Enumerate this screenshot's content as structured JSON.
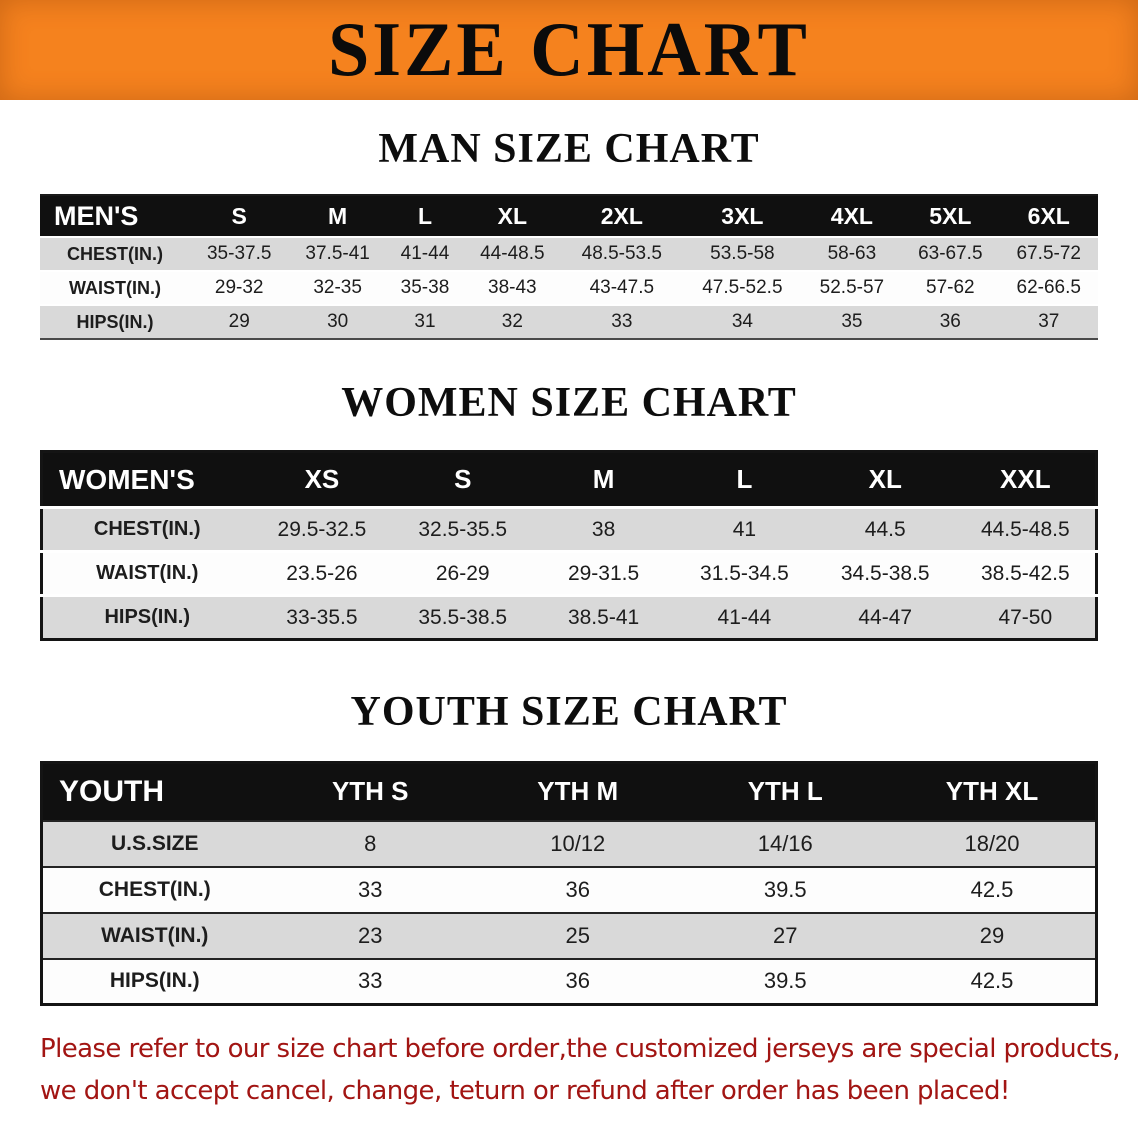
{
  "banner": {
    "title": "SIZE CHART"
  },
  "chart_data": [
    {
      "type": "table",
      "title": "MAN SIZE CHART",
      "columns": [
        "MEN'S",
        "S",
        "M",
        "L",
        "XL",
        "2XL",
        "3XL",
        "4XL",
        "5XL",
        "6XL"
      ],
      "rows": [
        {
          "label": "CHEST(IN.)",
          "values": [
            "35-37.5",
            "37.5-41",
            "41-44",
            "44-48.5",
            "48.5-53.5",
            "53.5-58",
            "58-63",
            "63-67.5",
            "67.5-72"
          ]
        },
        {
          "label": "WAIST(IN.)",
          "values": [
            "29-32",
            "32-35",
            "35-38",
            "38-43",
            "43-47.5",
            "47.5-52.5",
            "52.5-57",
            "57-62",
            "62-66.5"
          ]
        },
        {
          "label": "HIPS(IN.)",
          "values": [
            "29",
            "30",
            "31",
            "32",
            "33",
            "34",
            "35",
            "36",
            "37"
          ]
        }
      ]
    },
    {
      "type": "table",
      "title": "WOMEN SIZE CHART",
      "columns": [
        "WOMEN'S",
        "XS",
        "S",
        "M",
        "L",
        "XL",
        "XXL"
      ],
      "rows": [
        {
          "label": "CHEST(IN.)",
          "values": [
            "29.5-32.5",
            "32.5-35.5",
            "38",
            "41",
            "44.5",
            "44.5-48.5"
          ]
        },
        {
          "label": "WAIST(IN.)",
          "values": [
            "23.5-26",
            "26-29",
            "29-31.5",
            "31.5-34.5",
            "34.5-38.5",
            "38.5-42.5"
          ]
        },
        {
          "label": "HIPS(IN.)",
          "values": [
            "33-35.5",
            "35.5-38.5",
            "38.5-41",
            "41-44",
            "44-47",
            "47-50"
          ]
        }
      ]
    },
    {
      "type": "table",
      "title": "YOUTH SIZE CHART",
      "columns": [
        "YOUTH",
        "YTH S",
        "YTH M",
        "YTH L",
        "YTH XL"
      ],
      "rows": [
        {
          "label": "U.S.SIZE",
          "values": [
            "8",
            "10/12",
            "14/16",
            "18/20"
          ]
        },
        {
          "label": "CHEST(IN.)",
          "values": [
            "33",
            "36",
            "39.5",
            "42.5"
          ]
        },
        {
          "label": "WAIST(IN.)",
          "values": [
            "23",
            "25",
            "27",
            "29"
          ]
        },
        {
          "label": "HIPS(IN.)",
          "values": [
            "33",
            "36",
            "39.5",
            "42.5"
          ]
        }
      ]
    }
  ],
  "disclaimer": {
    "line1": "Please refer to our size chart before order,the customized jerseys are special products,",
    "line2": "we don't accept cancel, change, teturn or refund after order has been placed!"
  },
  "colors": {
    "banner_bg": "#F5821E",
    "table_header_bg": "#101010",
    "alt_row_bg": "#D9D9D9",
    "banner_text": "#0B0B0B",
    "disclaimer_text": "#A21513"
  }
}
